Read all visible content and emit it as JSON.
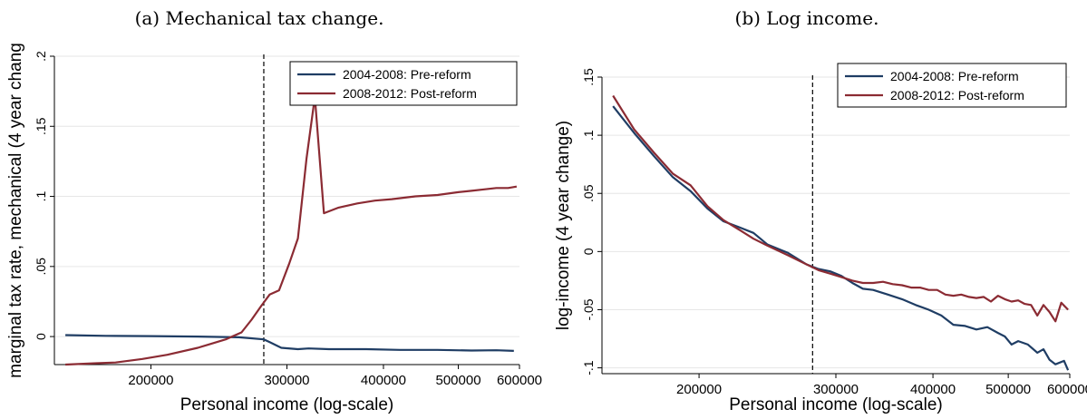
{
  "panels": [
    {
      "caption": "(a) Mechanical tax change."
    },
    {
      "caption": "(b) Log income."
    }
  ],
  "colors": {
    "pre": "#1F3D64",
    "post": "#8B2B33",
    "grid": "#e6e6e6",
    "vline": "#000000"
  },
  "chart_data": [
    {
      "type": "line",
      "title": "",
      "xlabel": "Personal income (log-scale)",
      "ylabel": "marginal tax rate, mechanical (4 year chang",
      "xscale": "log",
      "xlim": [
        150000,
        600000
      ],
      "ylim": [
        -0.02,
        0.2
      ],
      "xticks": [
        200000,
        300000,
        400000,
        500000,
        600000
      ],
      "xtick_labels": [
        "200000",
        "300000",
        "400000",
        "500000",
        "600000"
      ],
      "yticks": [
        0,
        0.05,
        0.1,
        0.15,
        0.2
      ],
      "ytick_labels": [
        "0",
        ".05",
        ".1",
        ".15",
        ".2"
      ],
      "grid": true,
      "vline_x": 280000,
      "legend_position": "top-right",
      "series": [
        {
          "name": "2004-2008: Pre-reform",
          "color_key": "pre",
          "x": [
            155000,
            175000,
            200000,
            230000,
            260000,
            280000,
            285000,
            295000,
            310000,
            320000,
            340000,
            380000,
            420000,
            470000,
            520000,
            560000,
            590000
          ],
          "y": [
            0.001,
            0.0005,
            0.0003,
            0.0,
            -0.0005,
            -0.002,
            -0.004,
            -0.008,
            -0.009,
            -0.0085,
            -0.009,
            -0.009,
            -0.0095,
            -0.0095,
            -0.01,
            -0.0098,
            -0.0102
          ]
        },
        {
          "name": "2008-2012: Post-reform",
          "color_key": "post",
          "x": [
            155000,
            170000,
            180000,
            195000,
            210000,
            230000,
            250000,
            262000,
            270000,
            278000,
            285000,
            293000,
            302000,
            310000,
            318000,
            326000,
            335000,
            350000,
            370000,
            390000,
            410000,
            440000,
            470000,
            500000,
            520000,
            540000,
            560000,
            580000,
            595000
          ],
          "y": [
            -0.02,
            -0.019,
            -0.0185,
            -0.016,
            -0.013,
            -0.008,
            -0.002,
            0.003,
            0.012,
            0.022,
            0.03,
            0.033,
            0.052,
            0.07,
            0.127,
            0.171,
            0.088,
            0.092,
            0.095,
            0.097,
            0.098,
            0.1,
            0.101,
            0.103,
            0.104,
            0.105,
            0.106,
            0.106,
            0.107
          ]
        }
      ]
    },
    {
      "type": "line",
      "title": "",
      "xlabel": "Personal income (log-scale)",
      "ylabel": "log-income (4 year change)",
      "xscale": "log",
      "xlim": [
        150000,
        600000
      ],
      "ylim": [
        -0.105,
        0.15
      ],
      "xticks": [
        200000,
        300000,
        400000,
        500000,
        600000
      ],
      "xtick_labels": [
        "200000",
        "300000",
        "400000",
        "500000",
        "600000"
      ],
      "yticks": [
        -0.1,
        -0.05,
        0,
        0.05,
        0.1,
        0.15
      ],
      "ytick_labels": [
        "-.1",
        "-.05",
        "0",
        ".05",
        ".1",
        ".15"
      ],
      "grid": true,
      "vline_x": 280000,
      "legend_position": "top-right",
      "series": [
        {
          "name": "2004-2008: Pre-reform",
          "color_key": "pre",
          "x": [
            155000,
            165000,
            175000,
            185000,
            195000,
            205000,
            215000,
            225000,
            235000,
            245000,
            260000,
            275000,
            285000,
            295000,
            305000,
            315000,
            325000,
            335000,
            350000,
            365000,
            380000,
            395000,
            410000,
            425000,
            440000,
            455000,
            470000,
            485000,
            495000,
            505000,
            515000,
            530000,
            545000,
            555000,
            565000,
            575000,
            590000,
            597000
          ],
          "y": [
            0.125,
            0.102,
            0.082,
            0.064,
            0.052,
            0.037,
            0.026,
            0.021,
            0.016,
            0.006,
            -0.001,
            -0.011,
            -0.015,
            -0.017,
            -0.021,
            -0.027,
            -0.032,
            -0.033,
            -0.037,
            -0.041,
            -0.046,
            -0.05,
            -0.055,
            -0.063,
            -0.064,
            -0.067,
            -0.065,
            -0.07,
            -0.073,
            -0.08,
            -0.077,
            -0.08,
            -0.087,
            -0.084,
            -0.093,
            -0.097,
            -0.094,
            -0.102
          ]
        },
        {
          "name": "2008-2012: Post-reform",
          "color_key": "post",
          "x": [
            155000,
            165000,
            175000,
            185000,
            195000,
            205000,
            215000,
            225000,
            235000,
            245000,
            260000,
            275000,
            285000,
            295000,
            305000,
            315000,
            325000,
            335000,
            345000,
            355000,
            365000,
            375000,
            385000,
            395000,
            405000,
            415000,
            425000,
            435000,
            445000,
            455000,
            465000,
            475000,
            485000,
            495000,
            505000,
            515000,
            525000,
            535000,
            545000,
            555000,
            565000,
            575000,
            585000,
            597000
          ],
          "y": [
            0.134,
            0.105,
            0.085,
            0.067,
            0.057,
            0.039,
            0.027,
            0.019,
            0.011,
            0.005,
            -0.003,
            -0.011,
            -0.016,
            -0.019,
            -0.022,
            -0.025,
            -0.027,
            -0.027,
            -0.026,
            -0.028,
            -0.029,
            -0.031,
            -0.031,
            -0.033,
            -0.033,
            -0.037,
            -0.038,
            -0.037,
            -0.039,
            -0.04,
            -0.039,
            -0.043,
            -0.038,
            -0.041,
            -0.043,
            -0.042,
            -0.045,
            -0.046,
            -0.055,
            -0.046,
            -0.052,
            -0.06,
            -0.044,
            -0.05
          ]
        }
      ]
    }
  ]
}
